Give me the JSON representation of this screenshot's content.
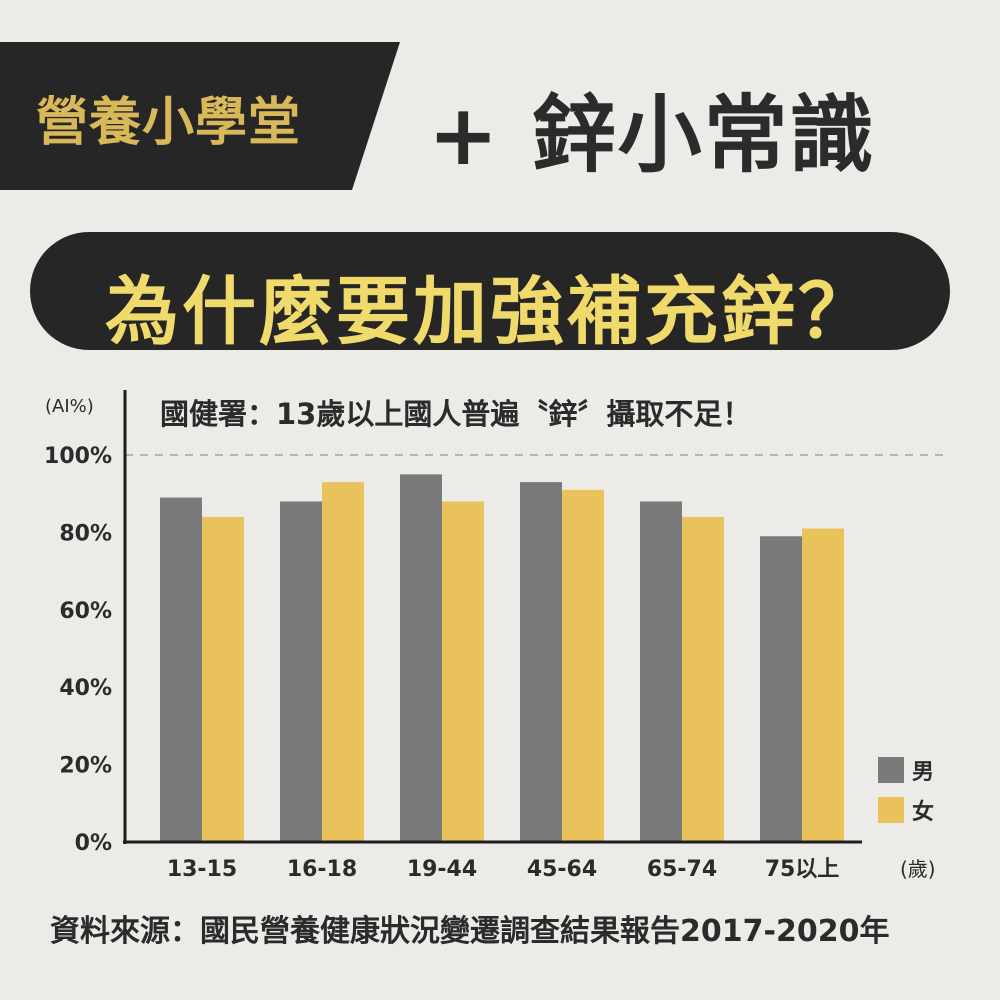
{
  "header": {
    "badge": "營養小學堂",
    "title": "+ 鋅小常識"
  },
  "banner": {
    "question": "為什麼要加強補充鋅？"
  },
  "chart_data": {
    "type": "bar",
    "title": "國健署：13歲以上國人普遍〝鋅〞攝取不足！",
    "ylabel": "(AI%)",
    "xlabel": "(歲)",
    "categories": [
      "13-15",
      "16-18",
      "19-44",
      "45-64",
      "65-74",
      "75以上"
    ],
    "yticks": [
      "0%",
      "20%",
      "40%",
      "60%",
      "80%",
      "100%"
    ],
    "ylim": [
      0,
      100
    ],
    "reference_line": 100,
    "grid": false,
    "legend_placement": "bottom-right",
    "series": [
      {
        "name": "男",
        "color": "#7a7a7a",
        "values": [
          89,
          88,
          95,
          93,
          88,
          79
        ]
      },
      {
        "name": "女",
        "color": "#e9c25c",
        "values": [
          84,
          93,
          88,
          91,
          84,
          81
        ]
      }
    ]
  },
  "footer": {
    "source": "資料來源：國民營養健康狀況變遷調查結果報告2017-2020年"
  }
}
